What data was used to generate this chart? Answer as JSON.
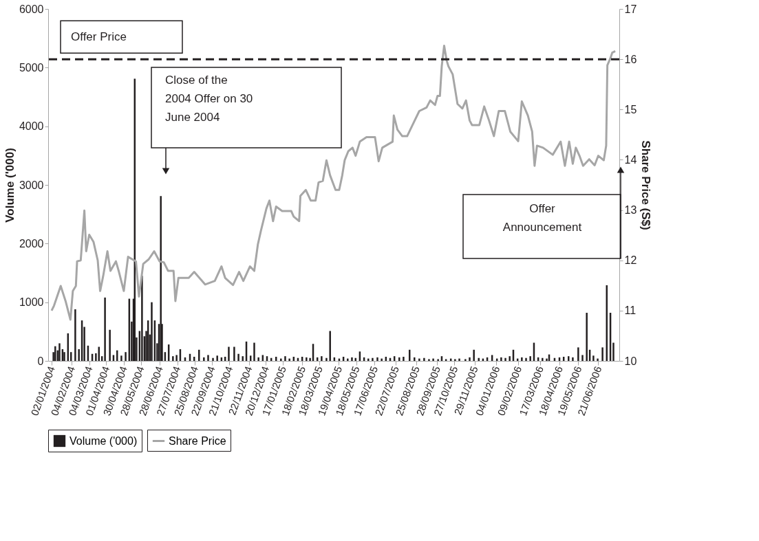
{
  "chart_data": {
    "type": "bar",
    "ylabel": "Volume ('000)",
    "y2label": "Share Price (S$)",
    "xlim": [
      "2004-01-02",
      "2006-07-20"
    ],
    "xticks": [
      {
        "value": "2004-01-02",
        "label": "02/01/2004"
      },
      {
        "value": "2004-02-04",
        "label": "04/02/2004"
      },
      {
        "value": "2004-03-04",
        "label": "04/03/2004"
      },
      {
        "value": "2004-04-01",
        "label": "01/04/2004"
      },
      {
        "value": "2004-04-30",
        "label": "30/04/2004"
      },
      {
        "value": "2004-05-28",
        "label": "28/05/2004"
      },
      {
        "value": "2004-06-28",
        "label": "28/06/2004"
      },
      {
        "value": "2004-07-27",
        "label": "27/07/2004"
      },
      {
        "value": "2004-08-25",
        "label": "25/08/2004"
      },
      {
        "value": "2004-09-22",
        "label": "22/09/2004"
      },
      {
        "value": "2004-10-21",
        "label": "21/10/2004"
      },
      {
        "value": "2004-11-22",
        "label": "22/11/2004"
      },
      {
        "value": "2004-12-20",
        "label": "20/12/2004"
      },
      {
        "value": "2005-01-17",
        "label": "17/01/2005"
      },
      {
        "value": "2005-02-18",
        "label": "18/02/2005"
      },
      {
        "value": "2005-03-18",
        "label": "18/03/2005"
      },
      {
        "value": "2005-04-19",
        "label": "19/04/2005"
      },
      {
        "value": "2005-05-18",
        "label": "18/05/2005"
      },
      {
        "value": "2005-06-17",
        "label": "17/06/2005"
      },
      {
        "value": "2005-07-22",
        "label": "22/07/2005"
      },
      {
        "value": "2005-08-25",
        "label": "25/08/2005"
      },
      {
        "value": "2005-09-28",
        "label": "28/09/2005"
      },
      {
        "value": "2005-10-27",
        "label": "27/10/2005"
      },
      {
        "value": "2005-11-29",
        "label": "29/11/2005"
      },
      {
        "value": "2006-01-04",
        "label": "04/01/2006"
      },
      {
        "value": "2006-02-09",
        "label": "09/02/2006"
      },
      {
        "value": "2006-03-17",
        "label": "17/03/2006"
      },
      {
        "value": "2006-04-18",
        "label": "18/04/2006"
      },
      {
        "value": "2006-05-19",
        "label": "19/05/2006"
      },
      {
        "value": "2006-06-21",
        "label": "21/06/2006"
      }
    ],
    "ylim": [
      0,
      6000
    ],
    "yticks": [
      0,
      1000,
      2000,
      3000,
      4000,
      5000,
      6000
    ],
    "y2lim": [
      10,
      17
    ],
    "y2ticks": [
      10,
      11,
      12,
      13,
      14,
      15,
      16,
      17
    ],
    "grid": false,
    "legend": "bottom",
    "series": [
      {
        "name": "Volume ('000)",
        "color": "#231f20",
        "x": [
          "2004-01-05",
          "2004-01-08",
          "2004-01-12",
          "2004-01-15",
          "2004-01-20",
          "2004-01-23",
          "2004-01-29",
          "2004-02-03",
          "2004-02-10",
          "2004-02-16",
          "2004-02-21",
          "2004-02-25",
          "2004-03-02",
          "2004-03-09",
          "2004-03-15",
          "2004-03-20",
          "2004-03-25",
          "2004-03-30",
          "2004-04-07",
          "2004-04-13",
          "2004-04-19",
          "2004-04-26",
          "2004-05-03",
          "2004-05-09",
          "2004-05-13",
          "2004-05-16",
          "2004-05-18",
          "2004-05-21",
          "2004-05-26",
          "2004-05-30",
          "2004-06-03",
          "2004-06-06",
          "2004-06-09",
          "2004-06-12",
          "2004-06-15",
          "2004-06-20",
          "2004-06-24",
          "2004-06-27",
          "2004-06-30",
          "2004-07-02",
          "2004-07-07",
          "2004-07-13",
          "2004-07-20",
          "2004-07-26",
          "2004-08-01",
          "2004-08-09",
          "2004-08-17",
          "2004-08-24",
          "2004-09-01",
          "2004-09-09",
          "2004-09-16",
          "2004-09-24",
          "2004-10-01",
          "2004-10-08",
          "2004-10-14",
          "2004-10-20",
          "2004-10-29",
          "2004-11-05",
          "2004-11-12",
          "2004-11-18",
          "2004-11-25",
          "2004-12-01",
          "2004-12-08",
          "2004-12-15",
          "2004-12-22",
          "2004-12-29",
          "2005-01-06",
          "2005-01-14",
          "2005-01-21",
          "2005-01-28",
          "2005-02-04",
          "2005-02-11",
          "2005-02-18",
          "2005-02-25",
          "2005-03-03",
          "2005-03-08",
          "2005-03-15",
          "2005-03-22",
          "2005-03-30",
          "2005-04-05",
          "2005-04-12",
          "2005-04-20",
          "2005-04-27",
          "2005-05-04",
          "2005-05-11",
          "2005-05-17",
          "2005-05-24",
          "2005-05-31",
          "2005-06-07",
          "2005-06-14",
          "2005-06-22",
          "2005-06-29",
          "2005-07-06",
          "2005-07-13",
          "2005-07-20",
          "2005-07-28",
          "2005-08-04",
          "2005-08-14",
          "2005-08-22",
          "2005-08-30",
          "2005-09-07",
          "2005-09-15",
          "2005-09-22",
          "2005-09-30",
          "2005-10-06",
          "2005-10-13",
          "2005-10-21",
          "2005-10-28",
          "2005-11-04",
          "2005-11-14",
          "2005-11-21",
          "2005-11-28",
          "2005-12-06",
          "2005-12-13",
          "2005-12-20",
          "2005-12-28",
          "2006-01-05",
          "2006-01-12",
          "2006-01-19",
          "2006-01-26",
          "2006-02-01",
          "2006-02-08",
          "2006-02-15",
          "2006-02-22",
          "2006-03-01",
          "2006-03-07",
          "2006-03-14",
          "2006-03-21",
          "2006-03-28",
          "2006-04-01",
          "2006-04-10",
          "2006-04-18",
          "2006-04-25",
          "2006-05-03",
          "2006-05-10",
          "2006-05-19",
          "2006-05-26",
          "2006-06-02",
          "2006-06-07",
          "2006-06-13",
          "2006-06-20",
          "2006-06-28",
          "2006-07-05",
          "2006-07-11",
          "2006-07-16"
        ],
        "values": [
          150,
          250,
          180,
          300,
          200,
          150,
          470,
          150,
          880,
          200,
          690,
          580,
          260,
          120,
          130,
          240,
          80,
          1080,
          530,
          100,
          180,
          90,
          150,
          1060,
          670,
          1060,
          4810,
          400,
          510,
          1450,
          420,
          510,
          690,
          450,
          1000,
          690,
          300,
          630,
          2810,
          630,
          150,
          280,
          80,
          100,
          200,
          60,
          120,
          70,
          190,
          60,
          100,
          50,
          90,
          60,
          70,
          240,
          240,
          120,
          80,
          330,
          90,
          310,
          60,
          100,
          80,
          50,
          70,
          40,
          80,
          40,
          70,
          50,
          70,
          60,
          50,
          290,
          60,
          80,
          50,
          510,
          60,
          40,
          70,
          40,
          60,
          50,
          160,
          60,
          40,
          50,
          60,
          40,
          70,
          50,
          80,
          60,
          70,
          190,
          60,
          40,
          50,
          30,
          40,
          30,
          80,
          30,
          40,
          30,
          40,
          30,
          60,
          190,
          50,
          40,
          60,
          100,
          40,
          60,
          50,
          80,
          190,
          40,
          60,
          50,
          80,
          310,
          60,
          50,
          40,
          110,
          50,
          60,
          70,
          80,
          60,
          230,
          100,
          820,
          190,
          90,
          40,
          230,
          1290,
          820,
          310
        ]
      },
      {
        "name": "Share Price",
        "type": "line",
        "axis": "y2",
        "color": "#a6a6a6",
        "x": [
          "2004-01-02",
          "2004-01-06",
          "2004-01-17",
          "2004-01-25",
          "2004-02-02",
          "2004-02-06",
          "2004-02-11",
          "2004-02-13",
          "2004-02-19",
          "2004-02-25",
          "2004-02-28",
          "2004-03-04",
          "2004-03-11",
          "2004-03-18",
          "2004-03-22",
          "2004-03-27",
          "2004-04-03",
          "2004-04-08",
          "2004-04-17",
          "2004-04-22",
          "2004-04-30",
          "2004-05-07",
          "2004-05-20",
          "2004-05-25",
          "2004-06-01",
          "2004-06-10",
          "2004-06-19",
          "2004-06-28",
          "2004-07-05",
          "2004-07-12",
          "2004-07-21",
          "2004-07-24",
          "2004-07-29",
          "2004-08-15",
          "2004-08-24",
          "2004-09-11",
          "2004-09-27",
          "2004-10-08",
          "2004-10-14",
          "2004-10-27",
          "2004-11-06",
          "2004-11-13",
          "2004-11-24",
          "2004-12-01",
          "2004-12-07",
          "2004-12-12",
          "2004-12-21",
          "2004-12-26",
          "2005-01-01",
          "2005-01-06",
          "2005-01-16",
          "2005-01-31",
          "2005-02-04",
          "2005-02-13",
          "2005-02-15",
          "2005-02-24",
          "2005-03-04",
          "2005-03-12",
          "2005-03-17",
          "2005-03-24",
          "2005-03-30",
          "2005-04-05",
          "2005-04-14",
          "2005-04-20",
          "2005-04-25",
          "2005-04-29",
          "2005-05-05",
          "2005-05-12",
          "2005-05-17",
          "2005-05-24",
          "2005-06-04",
          "2005-06-18",
          "2005-06-24",
          "2005-06-30",
          "2005-07-17",
          "2005-07-19",
          "2005-07-25",
          "2005-08-02",
          "2005-08-10",
          "2005-08-18",
          "2005-08-30",
          "2005-09-11",
          "2005-09-17",
          "2005-09-25",
          "2005-09-29",
          "2005-10-03",
          "2005-10-06",
          "2005-10-10",
          "2005-10-14",
          "2005-10-17",
          "2005-10-24",
          "2005-11-01",
          "2005-11-09",
          "2005-11-15",
          "2005-11-21",
          "2005-11-25",
          "2005-12-07",
          "2005-12-15",
          "2005-12-23",
          "2005-12-31",
          "2006-01-08",
          "2006-01-18",
          "2006-01-27",
          "2006-02-09",
          "2006-02-15",
          "2006-02-25",
          "2006-03-04",
          "2006-03-08",
          "2006-03-12",
          "2006-03-22",
          "2006-04-07",
          "2006-04-20",
          "2006-04-27",
          "2006-05-04",
          "2006-05-10",
          "2006-05-15",
          "2006-05-21",
          "2006-05-27",
          "2006-06-06",
          "2006-06-15",
          "2006-06-21",
          "2006-06-30",
          "2006-07-04",
          "2006-07-06",
          "2006-07-11",
          "2006-07-14",
          "2006-07-19"
        ],
        "values": [
          11.0,
          11.1,
          11.49,
          11.19,
          10.82,
          11.39,
          11.49,
          11.98,
          12.0,
          12.99,
          12.18,
          12.51,
          12.37,
          12.0,
          11.39,
          11.69,
          12.18,
          11.79,
          11.98,
          11.77,
          11.39,
          12.07,
          11.98,
          11.28,
          11.93,
          12.02,
          12.18,
          11.98,
          11.96,
          11.79,
          11.79,
          11.19,
          11.65,
          11.65,
          11.77,
          11.52,
          11.59,
          11.88,
          11.65,
          11.51,
          11.77,
          11.59,
          11.88,
          11.79,
          12.32,
          12.59,
          13.03,
          13.19,
          12.78,
          13.07,
          12.98,
          12.98,
          12.87,
          12.78,
          13.28,
          13.4,
          13.19,
          13.19,
          13.55,
          13.58,
          13.99,
          13.69,
          13.4,
          13.4,
          13.69,
          13.99,
          14.17,
          14.24,
          14.08,
          14.36,
          14.45,
          14.45,
          13.97,
          14.24,
          14.36,
          14.88,
          14.6,
          14.47,
          14.47,
          14.67,
          14.97,
          15.04,
          15.18,
          15.09,
          15.27,
          15.27,
          15.86,
          16.27,
          15.98,
          15.86,
          15.7,
          15.11,
          15.02,
          15.18,
          14.78,
          14.69,
          14.69,
          15.06,
          14.78,
          14.47,
          14.97,
          14.97,
          14.56,
          14.37,
          15.16,
          14.88,
          14.56,
          13.88,
          14.28,
          14.24,
          14.1,
          14.36,
          13.88,
          14.36,
          13.92,
          14.24,
          14.08,
          13.88,
          14.01,
          13.89,
          14.08,
          13.99,
          14.28,
          15.88,
          16.02,
          16.13,
          16.16
        ]
      }
    ],
    "ref_lines": [
      {
        "axis": "y2",
        "value": 16,
        "label": "Offer Price",
        "color": "#231f20",
        "line_style": "dashed"
      }
    ],
    "annotations": [
      "Close of the 2004 Offer on 30 June 2004",
      "Offer Announcement"
    ]
  }
}
